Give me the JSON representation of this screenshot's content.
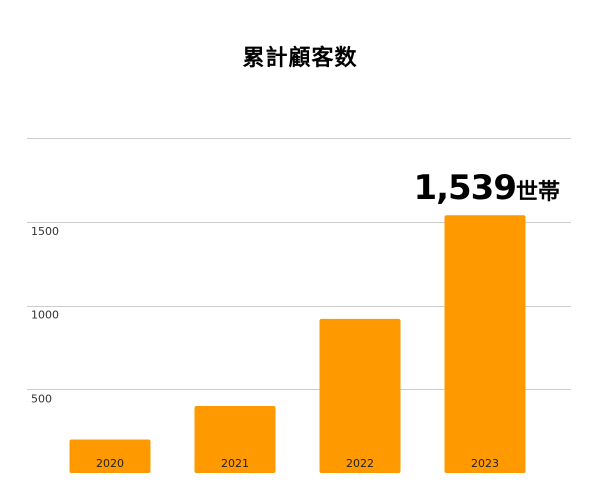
{
  "chart_data": {
    "type": "bar",
    "title": "累計顧客数",
    "categories": [
      "2020",
      "2021",
      "2022",
      "2023"
    ],
    "values": [
      200,
      400,
      920,
      1539
    ],
    "ylim": [
      0,
      2000
    ],
    "yticks": [
      500,
      1000,
      1500
    ],
    "grid": true,
    "legend": "none",
    "bar_color": "#ff9900",
    "grid_color": "#cccccc",
    "annotation": {
      "value": "1,539",
      "unit": "世帯",
      "category": "2023"
    }
  }
}
